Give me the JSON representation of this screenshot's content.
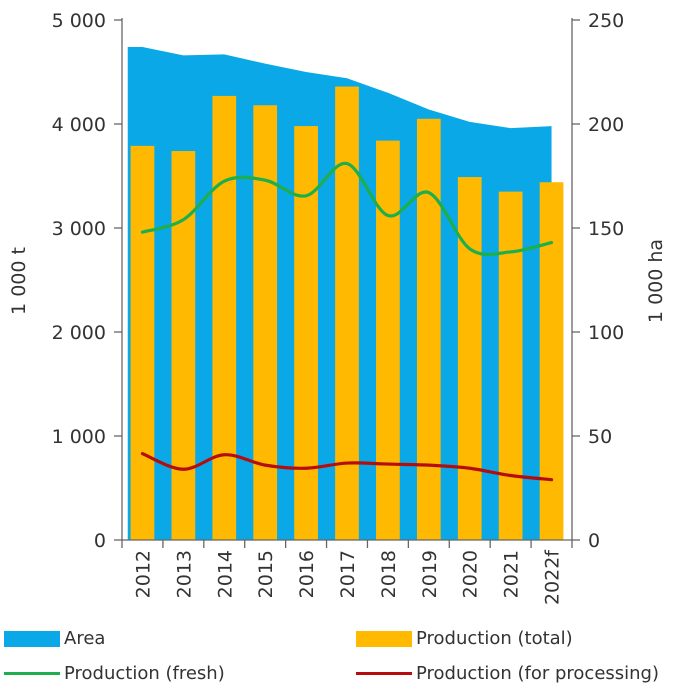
{
  "chart_data": {
    "type": "bar",
    "categories": [
      "2012",
      "2013",
      "2014",
      "2015",
      "2016",
      "2017",
      "2018",
      "2019",
      "2020",
      "2021",
      "2022f"
    ],
    "y_left": {
      "label": "1 000 t",
      "range": [
        0,
        5000
      ],
      "ticks": [
        "0",
        "1 000",
        "2 000",
        "3 000",
        "4 000",
        "5 000"
      ]
    },
    "y_right": {
      "label": "1 000 ha",
      "range": [
        0,
        250
      ],
      "ticks": [
        "0",
        "50",
        "100",
        "150",
        "200",
        "250"
      ]
    },
    "series": [
      {
        "name": "Area",
        "kind": "area",
        "axis": "right",
        "color": "#0aa8e6",
        "values": [
          237,
          233,
          233.5,
          229,
          225,
          222,
          215,
          207,
          201,
          198,
          199
        ]
      },
      {
        "name": "Production (total)",
        "kind": "bar",
        "axis": "left",
        "color": "#ffb900",
        "values": [
          3790,
          3740,
          4270,
          4180,
          3980,
          4360,
          3840,
          4050,
          3490,
          3350,
          3440
        ]
      },
      {
        "name": "Production (fresh)",
        "kind": "line",
        "axis": "left",
        "color": "#1eae4b",
        "values": [
          2960,
          3080,
          3450,
          3460,
          3310,
          3620,
          3120,
          3340,
          2800,
          2770,
          2860
        ]
      },
      {
        "name": "Production (for processing)",
        "kind": "line",
        "axis": "left",
        "color": "#b50d0d",
        "values": [
          830,
          680,
          820,
          720,
          690,
          740,
          730,
          720,
          690,
          620,
          580
        ]
      }
    ],
    "grid": false,
    "legend_position": "bottom"
  }
}
